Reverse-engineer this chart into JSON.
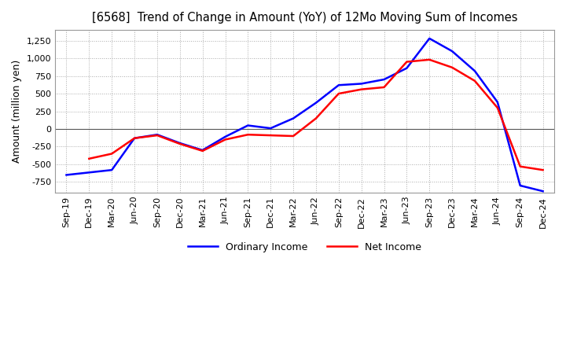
{
  "title": "[6568]  Trend of Change in Amount (YoY) of 12Mo Moving Sum of Incomes",
  "ylabel": "Amount (million yen)",
  "ylim": [
    -900,
    1400
  ],
  "yticks": [
    -750,
    -500,
    -250,
    0,
    250,
    500,
    750,
    1000,
    1250
  ],
  "background_color": "#ffffff",
  "grid_color": "#aaaaaa",
  "ordinary_income_color": "#0000ff",
  "net_income_color": "#ff0000",
  "dates": [
    "Sep-19",
    "Dec-19",
    "Mar-20",
    "Jun-20",
    "Sep-20",
    "Dec-20",
    "Mar-21",
    "Jun-21",
    "Sep-21",
    "Dec-21",
    "Mar-22",
    "Jun-22",
    "Sep-22",
    "Dec-22",
    "Mar-23",
    "Jun-23",
    "Sep-23",
    "Dec-23",
    "Mar-24",
    "Jun-24",
    "Sep-24",
    "Dec-24"
  ],
  "ordinary_income": [
    -650,
    null,
    -580,
    -130,
    -80,
    -200,
    -300,
    -110,
    50,
    10,
    150,
    370,
    620,
    640,
    700,
    860,
    1280,
    1100,
    820,
    380,
    -800,
    -880
  ],
  "net_income": [
    null,
    -420,
    -350,
    -130,
    -90,
    -210,
    -310,
    -150,
    -80,
    -90,
    -100,
    150,
    500,
    560,
    590,
    950,
    980,
    870,
    680,
    300,
    -530,
    -580
  ]
}
